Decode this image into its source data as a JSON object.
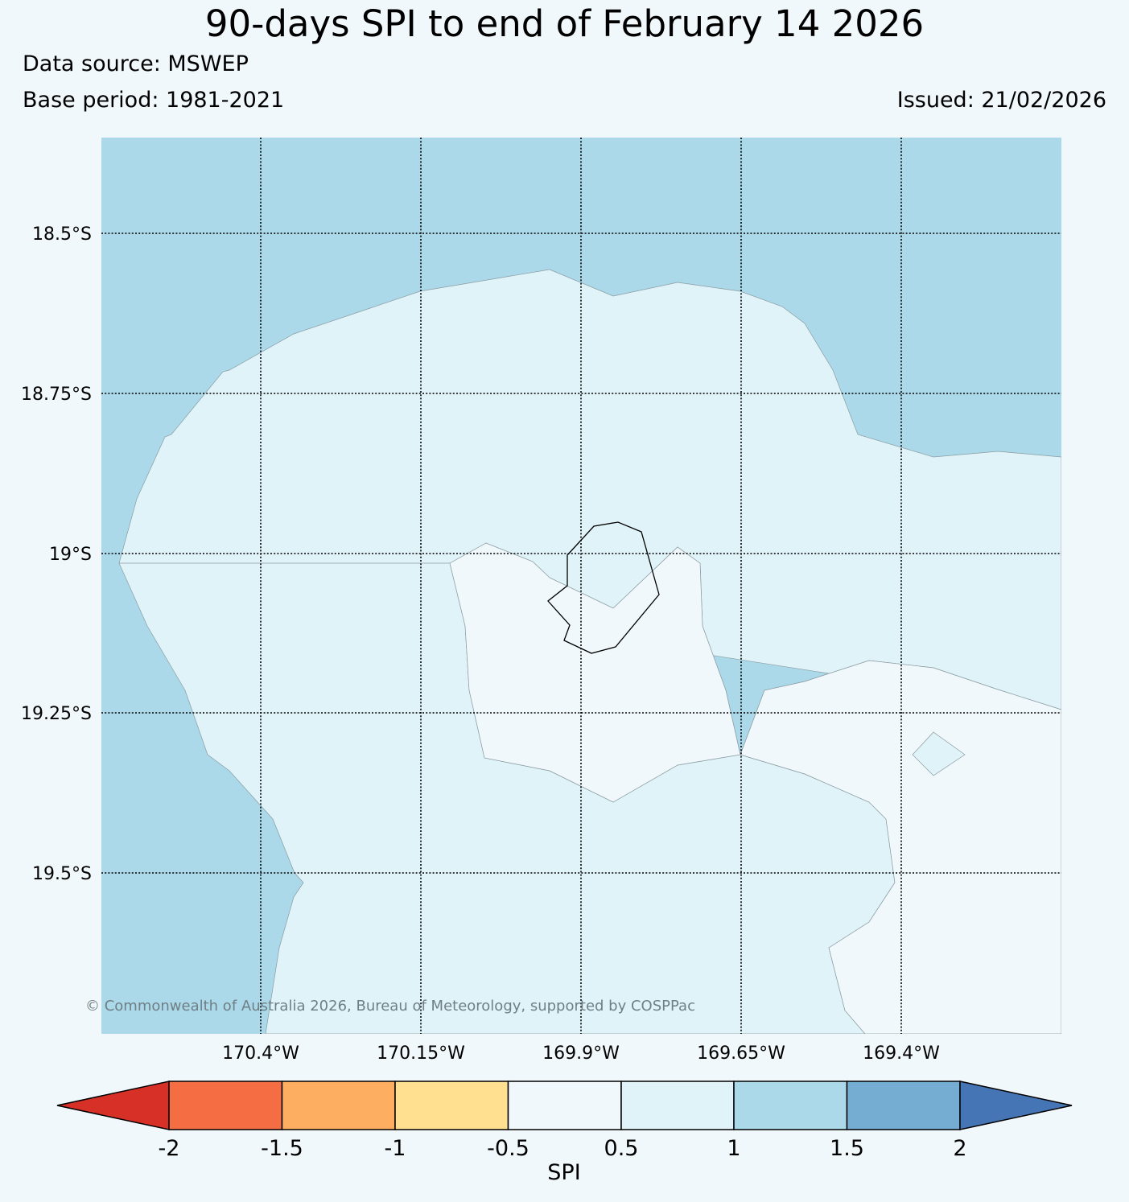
{
  "header": {
    "title": "90-days SPI to end of February 14 2026",
    "data_source": "Data source: MSWEP",
    "base_period": "Base period: 1981-2021",
    "issued": "Issued: 21/02/2026"
  },
  "map": {
    "lat_labels": [
      "18.5°S",
      "18.75°S",
      "19°S",
      "19.25°S",
      "19.5°S"
    ],
    "lon_labels": [
      "170.4°W",
      "170.15°W",
      "169.9°W",
      "169.65°W",
      "169.4°W"
    ],
    "copyright": "© Commonwealth of Australia 2026, Bureau of Meteorology, supported by COSPPac",
    "colors": {
      "spi_0_5_to_1": "#e0f3f8",
      "spi_1_to_1_5": "#abd9e9",
      "spi_neutral": "#f1f8fb"
    }
  },
  "colorbar": {
    "label": "SPI",
    "ticks": [
      "-2",
      "-1.5",
      "-1",
      "-0.5",
      "0.5",
      "1",
      "1.5",
      "2"
    ],
    "colors": [
      "#d73027",
      "#f46d43",
      "#fdae61",
      "#fee090",
      "#f1f8fb",
      "#e0f3f8",
      "#abd9e9",
      "#74add1",
      "#4575b4"
    ]
  }
}
